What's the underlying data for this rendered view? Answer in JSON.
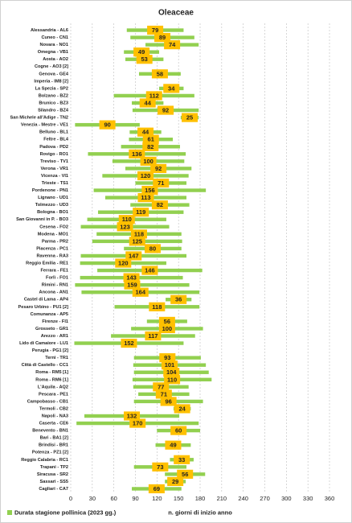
{
  "chart_data": {
    "type": "floating-bar",
    "title": "Oleaceae",
    "x_label": "n. giorni di inizio anno",
    "categories": [
      "Alessandria - AL6",
      "Cuneo - CN1",
      "Novara - NO1",
      "Omegna - VB1",
      "Aosta - AO2",
      "Cogne - AO3 [2]",
      "Genova - GE4",
      "Imperia - IM8 [2]",
      "La Spezia - SP2",
      "Bolzano - BZ2",
      "Brunico - BZ3",
      "Silandro - BZ4",
      "San Michele all'Adige - TN2",
      "Venezia - Mestre - VE1",
      "Belluno - BL1",
      "Feltre - BL4",
      "Padova - PD2",
      "Rovigo - RO1",
      "Treviso - TV1",
      "Verona - VR1",
      "Vicenza - VI1",
      "Trieste - TS1",
      "Pordenone - PN1",
      "Lignano - UD1",
      "Tolmezzo - UD3",
      "Bologna - BO1",
      "San Giovanni in P. - BO3",
      "Cesena - FO2",
      "Modena - MO1",
      "Parma - PR2",
      "Piacenza - PC1",
      "Ravenna - RA3",
      "Reggio Emilia - RE1",
      "Ferrara - FE1",
      "Forlì - FO1",
      "Rimini - RN1",
      "Ancona - AN1",
      "Castel di Lama - AP4",
      "Pesaro Urbino - PU1 [2]",
      "Comunanza - AP5",
      "Firenze - FI1",
      "Grosseto - GR1",
      "Arezzo - AR1",
      "Lido di Camaiore - LU1",
      "Perugia - PG1 [2]",
      "Terni - TR1",
      "Città di Castello - CC1",
      "Roma - RM5 [1]",
      "Roma - RM6 [1]",
      "L'Aquila - AQ2",
      "Pescara - PE1",
      "Campobasso - CB1",
      "Termoli - CB2",
      "Napoli - NA3",
      "Caserta - CE6",
      "Benevento - BN1",
      "Bari - BA1 [2]",
      "Brindisi - BR1",
      "Potenza - PZ1 [2]",
      "Reggio Calabria - RC1",
      "Trapani - TP2",
      "Siracusa - SR2",
      "Sassari - SS5",
      "Cagliari - CA7"
    ],
    "start": [
      78,
      83,
      104,
      74,
      76,
      null,
      95,
      null,
      123,
      60,
      85,
      86,
      153,
      6,
      82,
      81,
      70,
      24,
      58,
      76,
      44,
      90,
      32,
      48,
      83,
      38,
      23,
      14,
      36,
      30,
      74,
      14,
      13,
      37,
      13,
      6,
      15,
      132,
      61,
      null,
      106,
      84,
      56,
      5,
      null,
      88,
      87,
      88,
      86,
      87,
      94,
      88,
      143,
      19,
      8,
      120,
      null,
      118,
      null,
      138,
      88,
      131,
      131,
      85
    ],
    "series": [
      {
        "name": "Durata stagione pollinica (2023 gg.)",
        "color": "#92d050",
        "label_color": "#ffc000",
        "values": [
          79,
          89,
          74,
          49,
          53,
          null,
          58,
          null,
          34,
          112,
          44,
          92,
          25,
          90,
          44,
          61,
          82,
          136,
          100,
          92,
          120,
          71,
          156,
          113,
          82,
          119,
          110,
          123,
          118,
          125,
          80,
          147,
          120,
          146,
          143,
          159,
          164,
          36,
          118,
          null,
          56,
          100,
          117,
          152,
          null,
          93,
          101,
          104,
          110,
          77,
          71,
          96,
          24,
          132,
          170,
          60,
          null,
          49,
          null,
          33,
          73,
          56,
          29,
          69
        ]
      }
    ],
    "xlim": [
      0,
      360
    ],
    "xticks": [
      0,
      30,
      60,
      90,
      120,
      150,
      180,
      210,
      240,
      270,
      300,
      330,
      360
    ],
    "grid": true
  }
}
